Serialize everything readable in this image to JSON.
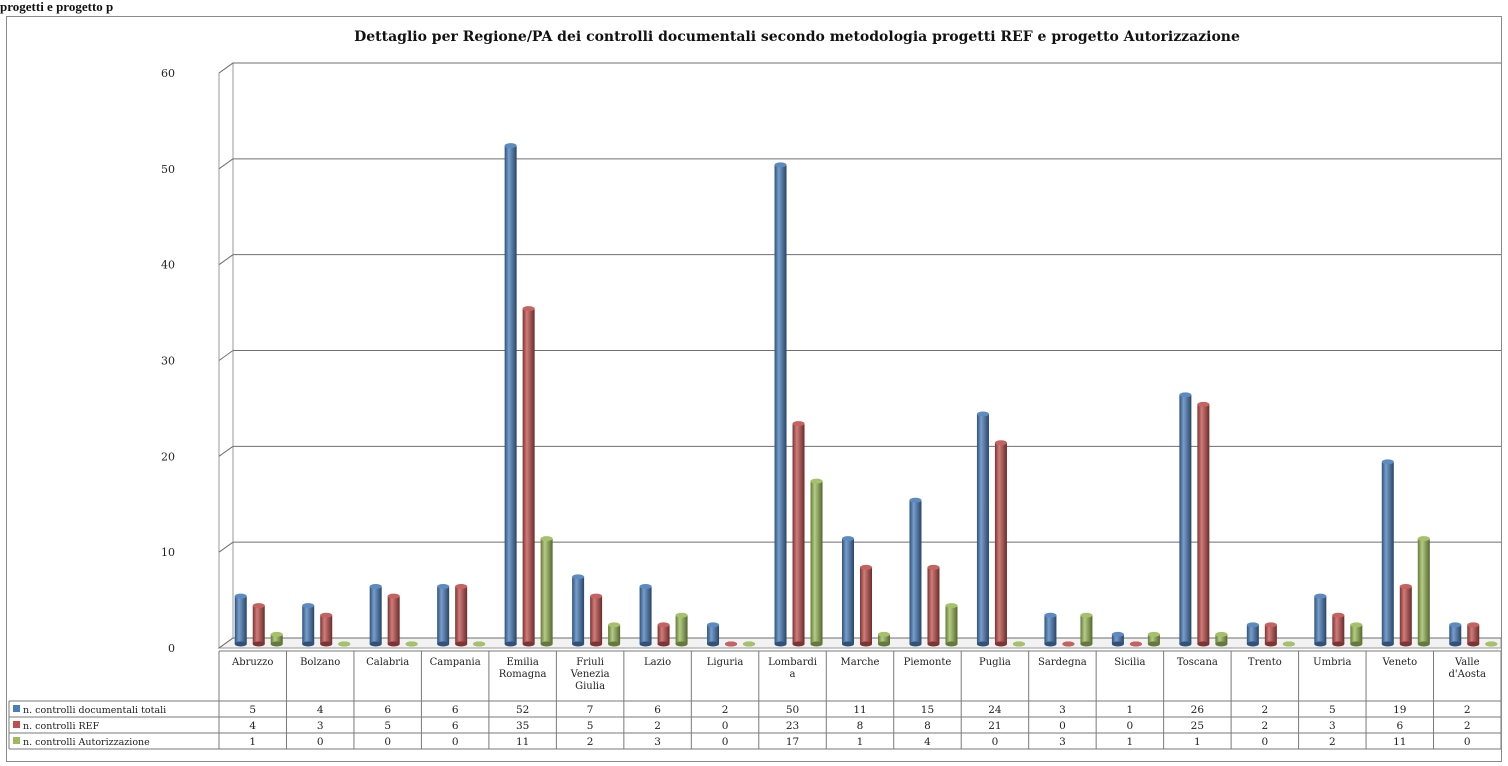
{
  "page": {
    "heading": "progetti e progetto p"
  },
  "chart_data": {
    "type": "bar",
    "title": "Dettaglio per Regione/PA dei controlli documentali secondo metodologia progetti REF e progetto Autorizzazione",
    "xlabel": "",
    "ylabel": "",
    "ylim": [
      0,
      60
    ],
    "yticks": [
      0,
      10,
      20,
      30,
      40,
      50,
      60
    ],
    "grid": true,
    "legend": "data-table-left",
    "categories": [
      [
        "Abruzzo"
      ],
      [
        "Bolzano"
      ],
      [
        "Calabria"
      ],
      [
        "Campania"
      ],
      [
        "Emilia",
        "Romagna"
      ],
      [
        "Friuli",
        "Venezia",
        "Giulia"
      ],
      [
        "Lazio"
      ],
      [
        "Liguria"
      ],
      [
        "Lombardi",
        "a"
      ],
      [
        "Marche"
      ],
      [
        "Piemonte"
      ],
      [
        "Puglia"
      ],
      [
        "Sardegna"
      ],
      [
        "Sicilia"
      ],
      [
        "Toscana"
      ],
      [
        "Trento"
      ],
      [
        "Umbria"
      ],
      [
        "Veneto"
      ],
      [
        "Valle",
        "d'Aosta"
      ]
    ],
    "series": [
      {
        "name": "n. controlli documentali totali",
        "color": "#4a7ebb",
        "values": [
          5,
          4,
          6,
          6,
          52,
          7,
          6,
          2,
          50,
          11,
          15,
          24,
          3,
          1,
          26,
          2,
          5,
          19,
          2
        ]
      },
      {
        "name": "n. controlli REF",
        "color": "#c0504d",
        "values": [
          4,
          3,
          5,
          6,
          35,
          5,
          2,
          0,
          23,
          8,
          8,
          21,
          0,
          0,
          25,
          2,
          3,
          6,
          2
        ]
      },
      {
        "name": "n. controlli Autorizzazione",
        "color": "#9bbb59",
        "values": [
          1,
          0,
          0,
          0,
          11,
          2,
          3,
          0,
          17,
          1,
          4,
          0,
          3,
          1,
          1,
          0,
          2,
          11,
          0
        ]
      }
    ]
  }
}
